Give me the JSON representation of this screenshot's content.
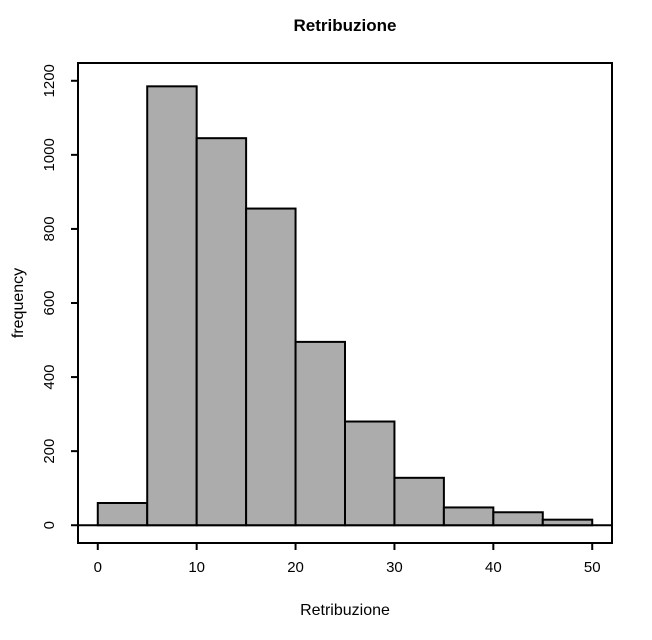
{
  "figure": {
    "background_color": "#ffffff"
  },
  "chart_data": {
    "type": "bar",
    "chart_kind": "histogram",
    "title": "Retribuzione",
    "xlabel": "Retribuzione",
    "ylabel": "frequency",
    "bin_edges": [
      0,
      5,
      10,
      15,
      20,
      25,
      30,
      35,
      40,
      45,
      50
    ],
    "counts": [
      60,
      1185,
      1045,
      855,
      495,
      280,
      128,
      48,
      35,
      15
    ],
    "x_ticks": [
      0,
      10,
      20,
      30,
      40,
      50
    ],
    "y_ticks": [
      0,
      200,
      400,
      600,
      800,
      1000,
      1200
    ],
    "xlim": [
      0,
      50
    ],
    "ylim": [
      0,
      1200
    ],
    "grid": false,
    "legend": false,
    "bar_fill_color": "#ACACAC",
    "bar_stroke_color": "#000000",
    "axis_color": "#000000"
  }
}
